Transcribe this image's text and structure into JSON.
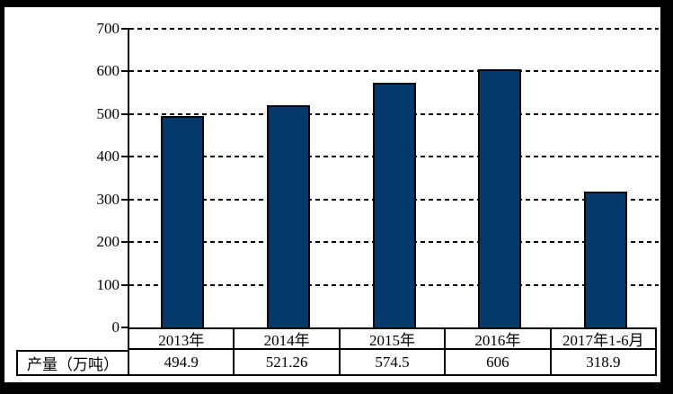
{
  "chart_data": {
    "type": "bar",
    "title": "",
    "xlabel": "",
    "ylabel": "",
    "categories": [
      "2013年",
      "2014年",
      "2015年",
      "2016年",
      "2017年1-6月"
    ],
    "series": [
      {
        "name": "产量（万吨）",
        "values": [
          494.9,
          521.26,
          574.5,
          606,
          318.9
        ]
      }
    ],
    "values_display": [
      "494.9",
      "521.26",
      "574.5",
      "606",
      "318.9"
    ],
    "data_table_row_label": "产量（万吨）",
    "ylim": [
      0,
      700
    ],
    "yticks": [
      0,
      100,
      200,
      300,
      400,
      500,
      600,
      700
    ],
    "grid": "horizontal-dashed",
    "legend_position": "none",
    "bar_color": "#033A6B",
    "bar_border_color": "#000000",
    "axis_color": "#000000",
    "text_color": "#000000",
    "frame_border_color": "#000000",
    "background_color": "#FFFFFF"
  }
}
